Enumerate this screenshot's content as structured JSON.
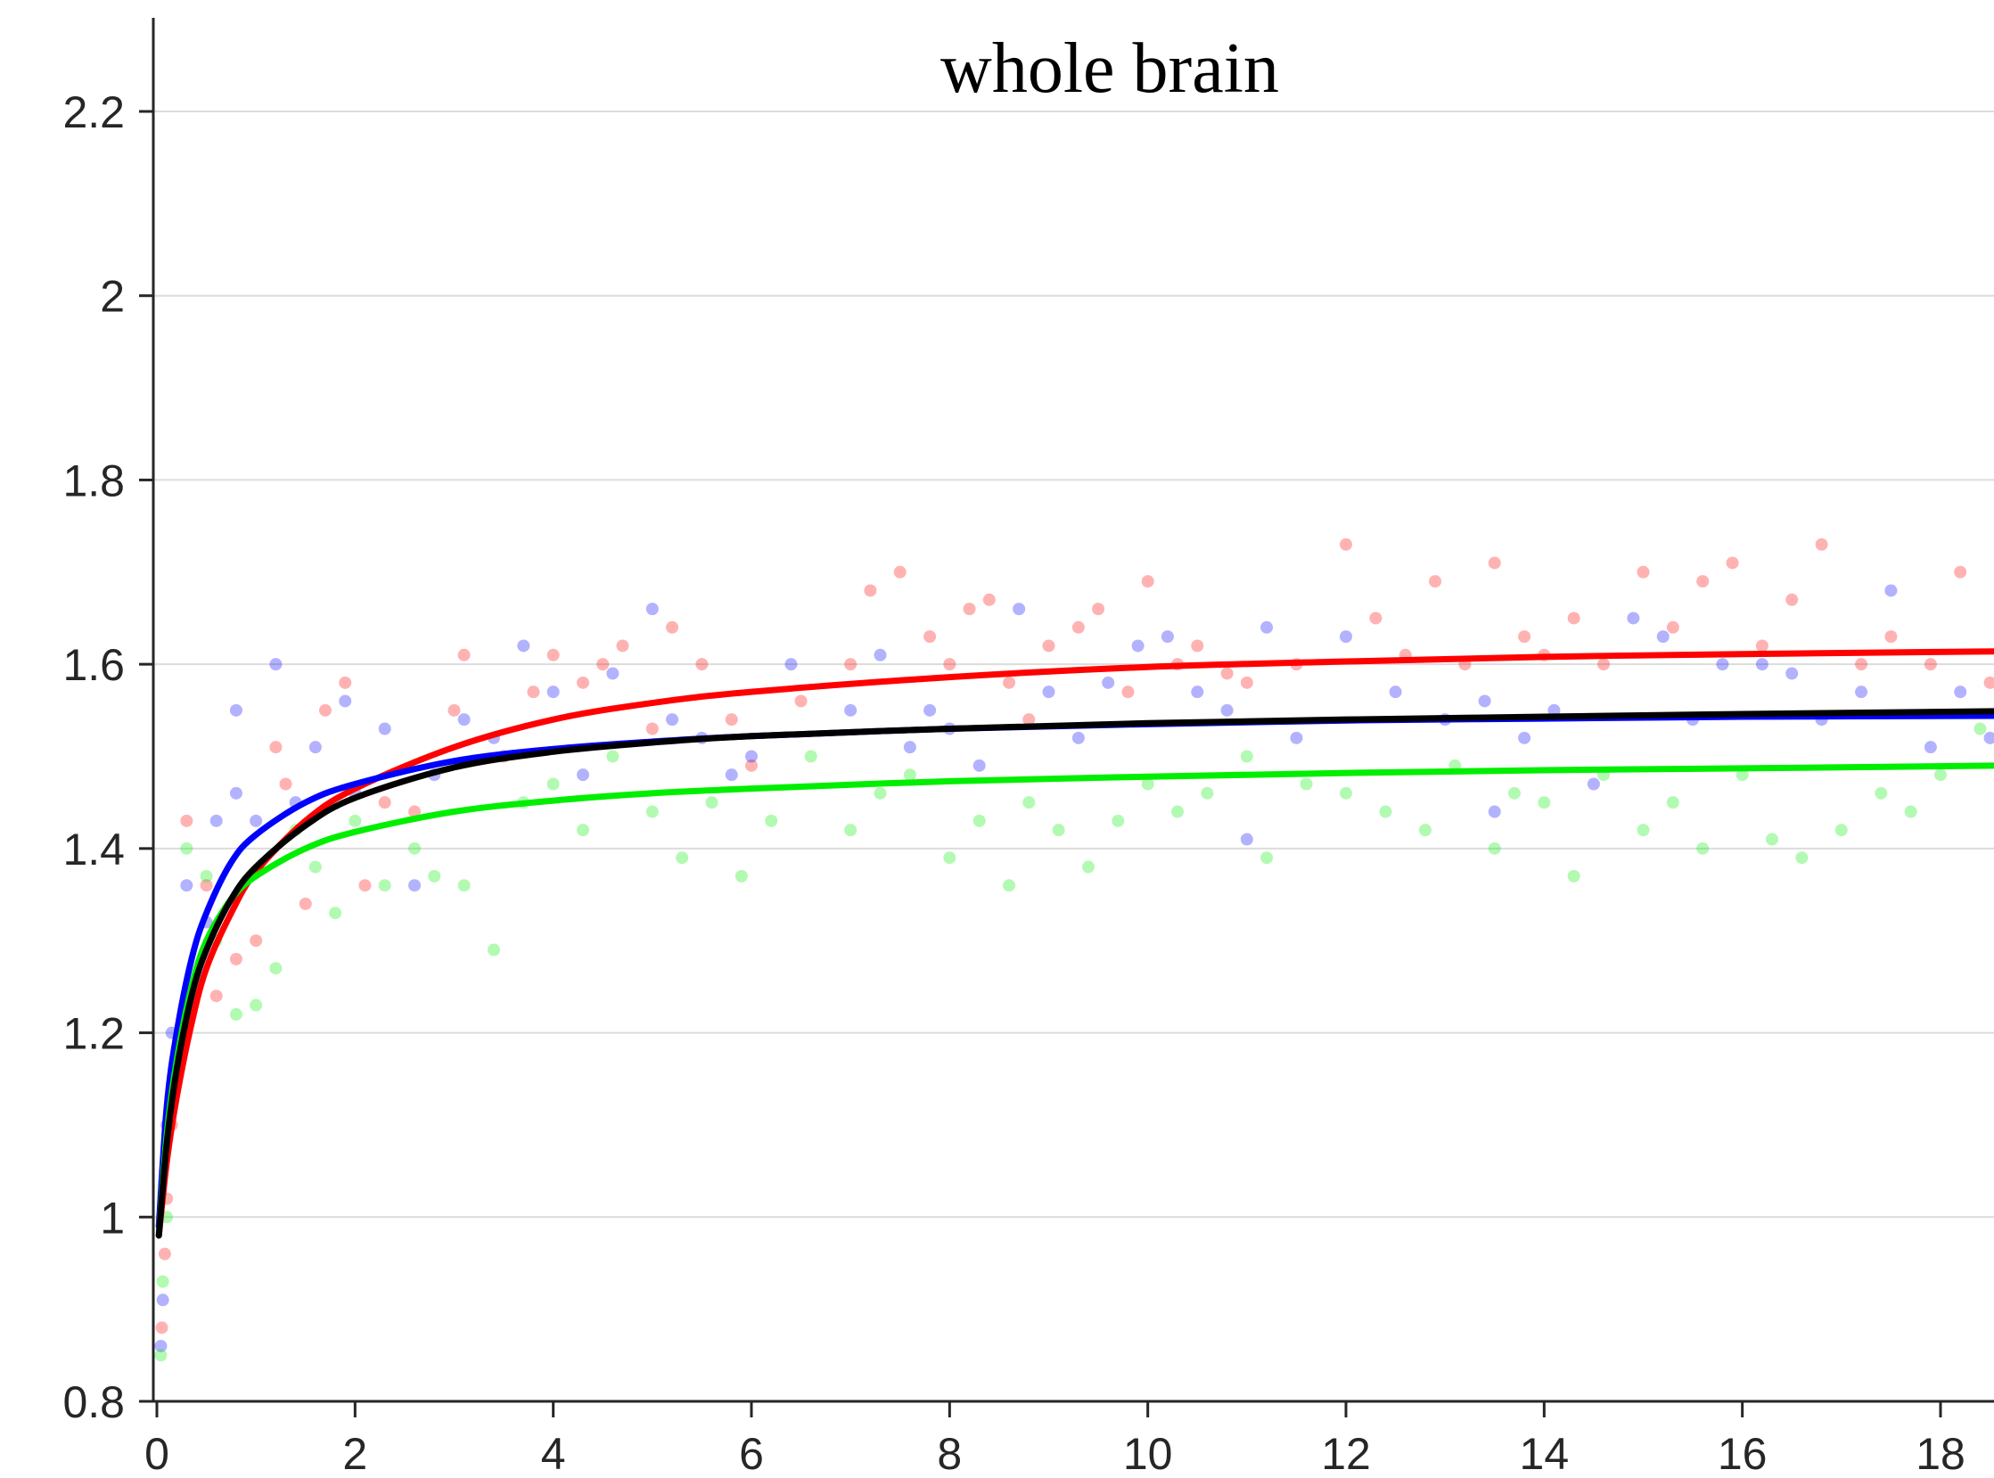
{
  "chart_data": {
    "type": "scatter",
    "title": "whole brain",
    "xlabel": "",
    "ylabel": "",
    "xlim": [
      0,
      18.6
    ],
    "ylim": [
      0.8,
      2.3
    ],
    "x_ticks": [
      0,
      2,
      4,
      6,
      8,
      10,
      12,
      14,
      16,
      18
    ],
    "y_ticks": [
      0.8,
      1,
      1.2,
      1.4,
      1.6,
      1.8,
      2,
      2.2
    ],
    "x_tick_labels": [
      "0",
      "2",
      "4",
      "6",
      "8",
      "10",
      "12",
      "14",
      "16",
      "18"
    ],
    "y_tick_labels": [
      "0.8",
      "1",
      "1.2",
      "1.4",
      "1.6",
      "1.8",
      "2",
      "2.2"
    ],
    "grid": "horizontal",
    "legend": "none",
    "colors": {
      "red": "#ff0000",
      "blue": "#0000ff",
      "green": "#00ee00",
      "black": "#000000"
    },
    "series": [
      {
        "color": "red",
        "kind": "fit",
        "x": [
          0.02,
          0.1,
          0.2,
          0.35,
          0.5,
          0.75,
          1,
          1.5,
          2,
          3,
          4,
          5,
          6,
          8,
          10,
          12,
          14,
          16,
          18.6
        ],
        "y": [
          0.98,
          1.06,
          1.13,
          1.21,
          1.27,
          1.33,
          1.375,
          1.43,
          1.465,
          1.51,
          1.54,
          1.558,
          1.57,
          1.586,
          1.597,
          1.603,
          1.608,
          1.611,
          1.614
        ]
      },
      {
        "color": "blue",
        "kind": "fit",
        "x": [
          0.02,
          0.1,
          0.2,
          0.35,
          0.5,
          0.75,
          1,
          1.5,
          2,
          3,
          4,
          5,
          6,
          8,
          10,
          12,
          14,
          16,
          18.6
        ],
        "y": [
          0.99,
          1.12,
          1.2,
          1.28,
          1.33,
          1.385,
          1.415,
          1.45,
          1.47,
          1.495,
          1.508,
          1.516,
          1.522,
          1.53,
          1.535,
          1.539,
          1.541,
          1.543,
          1.544
        ]
      },
      {
        "color": "green",
        "kind": "fit",
        "x": [
          0.02,
          0.1,
          0.2,
          0.35,
          0.5,
          0.75,
          1,
          1.5,
          2,
          3,
          4,
          5,
          6,
          8,
          10,
          12,
          14,
          16,
          18.6
        ],
        "y": [
          0.98,
          1.09,
          1.17,
          1.25,
          1.3,
          1.345,
          1.37,
          1.4,
          1.418,
          1.44,
          1.452,
          1.46,
          1.465,
          1.473,
          1.478,
          1.482,
          1.485,
          1.487,
          1.49
        ]
      },
      {
        "color": "black",
        "kind": "fit",
        "x": [
          0.02,
          0.1,
          0.2,
          0.35,
          0.5,
          0.75,
          1,
          1.5,
          2,
          3,
          4,
          5,
          6,
          8,
          10,
          12,
          14,
          16,
          18.6
        ],
        "y": [
          0.98,
          1.08,
          1.16,
          1.24,
          1.29,
          1.345,
          1.38,
          1.425,
          1.455,
          1.488,
          1.505,
          1.515,
          1.522,
          1.53,
          1.536,
          1.54,
          1.543,
          1.546,
          1.549
        ]
      },
      {
        "color": "red",
        "kind": "points",
        "x": [
          0.05,
          0.08,
          0.1,
          0.15,
          0.3,
          0.5,
          0.6,
          0.8,
          1.0,
          1.2,
          1.3,
          1.5,
          1.7,
          1.9,
          2.1,
          2.3,
          2.6,
          3.0,
          3.1,
          3.5,
          3.8,
          4.0,
          4.3,
          4.5,
          4.7,
          5.0,
          5.2,
          5.5,
          5.8,
          6.0,
          6.5,
          7.0,
          7.2,
          7.5,
          7.8,
          8.0,
          8.2,
          8.4,
          8.6,
          8.8,
          9.0,
          9.3,
          9.5,
          9.8,
          10.0,
          10.3,
          10.5,
          10.8,
          11.0,
          11.5,
          12.0,
          12.3,
          12.6,
          12.9,
          13.2,
          13.5,
          13.8,
          14.0,
          14.3,
          14.6,
          15.0,
          15.3,
          15.6,
          15.9,
          16.2,
          16.5,
          16.8,
          17.2,
          17.5,
          17.9,
          18.2,
          18.5
        ],
        "y": [
          0.88,
          0.96,
          1.02,
          1.1,
          1.43,
          1.36,
          1.24,
          1.28,
          1.3,
          1.51,
          1.47,
          1.34,
          1.55,
          1.58,
          1.36,
          1.45,
          1.44,
          1.55,
          1.61,
          1.5,
          1.57,
          1.61,
          1.58,
          1.6,
          1.62,
          1.53,
          1.64,
          1.6,
          1.54,
          1.49,
          1.56,
          1.6,
          1.68,
          1.7,
          1.63,
          1.6,
          1.66,
          1.67,
          1.58,
          1.54,
          1.62,
          1.64,
          1.66,
          1.57,
          1.69,
          1.6,
          1.62,
          1.59,
          1.58,
          1.6,
          1.73,
          1.65,
          1.61,
          1.69,
          1.6,
          1.71,
          1.63,
          1.61,
          1.65,
          1.6,
          1.7,
          1.64,
          1.69,
          1.71,
          1.62,
          1.67,
          1.73,
          1.6,
          1.63,
          1.6,
          1.7,
          1.58
        ]
      },
      {
        "color": "blue",
        "kind": "points",
        "x": [
          0.04,
          0.06,
          0.1,
          0.15,
          0.3,
          0.5,
          0.6,
          0.8,
          0.8,
          1.0,
          1.2,
          1.4,
          1.6,
          1.9,
          2.0,
          2.3,
          2.6,
          2.8,
          3.1,
          3.4,
          3.7,
          4.0,
          4.3,
          4.6,
          5.0,
          5.2,
          5.5,
          5.8,
          6.0,
          6.4,
          7.0,
          7.3,
          7.6,
          7.8,
          8.0,
          8.3,
          8.7,
          9.0,
          9.3,
          9.6,
          9.9,
          10.2,
          10.5,
          10.8,
          11.0,
          11.2,
          11.5,
          12.0,
          12.5,
          13.0,
          13.4,
          13.5,
          13.8,
          14.1,
          14.5,
          14.9,
          15.2,
          15.5,
          15.8,
          16.2,
          16.5,
          16.8,
          17.2,
          17.5,
          17.9,
          18.2,
          18.5
        ],
        "y": [
          0.86,
          0.91,
          1.1,
          1.2,
          1.36,
          1.32,
          1.43,
          1.46,
          1.55,
          1.43,
          1.6,
          1.45,
          1.51,
          1.56,
          1.46,
          1.53,
          1.36,
          1.48,
          1.54,
          1.52,
          1.62,
          1.57,
          1.48,
          1.59,
          1.66,
          1.54,
          1.52,
          1.48,
          1.5,
          1.6,
          1.55,
          1.61,
          1.51,
          1.55,
          1.53,
          1.49,
          1.66,
          1.57,
          1.52,
          1.58,
          1.62,
          1.63,
          1.57,
          1.55,
          1.41,
          1.64,
          1.52,
          1.63,
          1.57,
          1.54,
          1.56,
          1.44,
          1.52,
          1.55,
          1.47,
          1.65,
          1.63,
          1.54,
          1.6,
          1.6,
          1.59,
          1.54,
          1.57,
          1.68,
          1.51,
          1.57,
          1.52
        ]
      },
      {
        "color": "green",
        "kind": "points",
        "x": [
          0.04,
          0.06,
          0.1,
          0.2,
          0.3,
          0.5,
          0.6,
          0.8,
          1.0,
          1.2,
          1.4,
          1.6,
          1.8,
          2.0,
          2.3,
          2.6,
          2.8,
          3.1,
          3.4,
          3.7,
          4.0,
          4.3,
          4.6,
          5.0,
          5.3,
          5.6,
          5.9,
          6.2,
          6.6,
          7.0,
          7.3,
          7.6,
          8.0,
          8.3,
          8.6,
          8.8,
          9.1,
          9.4,
          9.7,
          10.0,
          10.3,
          10.6,
          11.0,
          11.2,
          11.6,
          12.0,
          12.4,
          12.8,
          13.1,
          13.5,
          13.7,
          14.0,
          14.3,
          14.6,
          15.0,
          15.3,
          15.6,
          16.0,
          16.3,
          16.6,
          17.0,
          17.4,
          17.7,
          18.0,
          18.4
        ],
        "y": [
          0.85,
          0.93,
          1.0,
          1.15,
          1.4,
          1.37,
          1.3,
          1.22,
          1.23,
          1.27,
          1.42,
          1.38,
          1.33,
          1.43,
          1.36,
          1.4,
          1.37,
          1.36,
          1.29,
          1.45,
          1.47,
          1.42,
          1.5,
          1.44,
          1.39,
          1.45,
          1.37,
          1.43,
          1.5,
          1.42,
          1.46,
          1.48,
          1.39,
          1.43,
          1.36,
          1.45,
          1.42,
          1.38,
          1.43,
          1.47,
          1.44,
          1.46,
          1.5,
          1.39,
          1.47,
          1.46,
          1.44,
          1.42,
          1.49,
          1.4,
          1.46,
          1.45,
          1.37,
          1.48,
          1.42,
          1.45,
          1.4,
          1.48,
          1.41,
          1.39,
          1.42,
          1.46,
          1.44,
          1.48,
          1.53
        ]
      }
    ]
  }
}
